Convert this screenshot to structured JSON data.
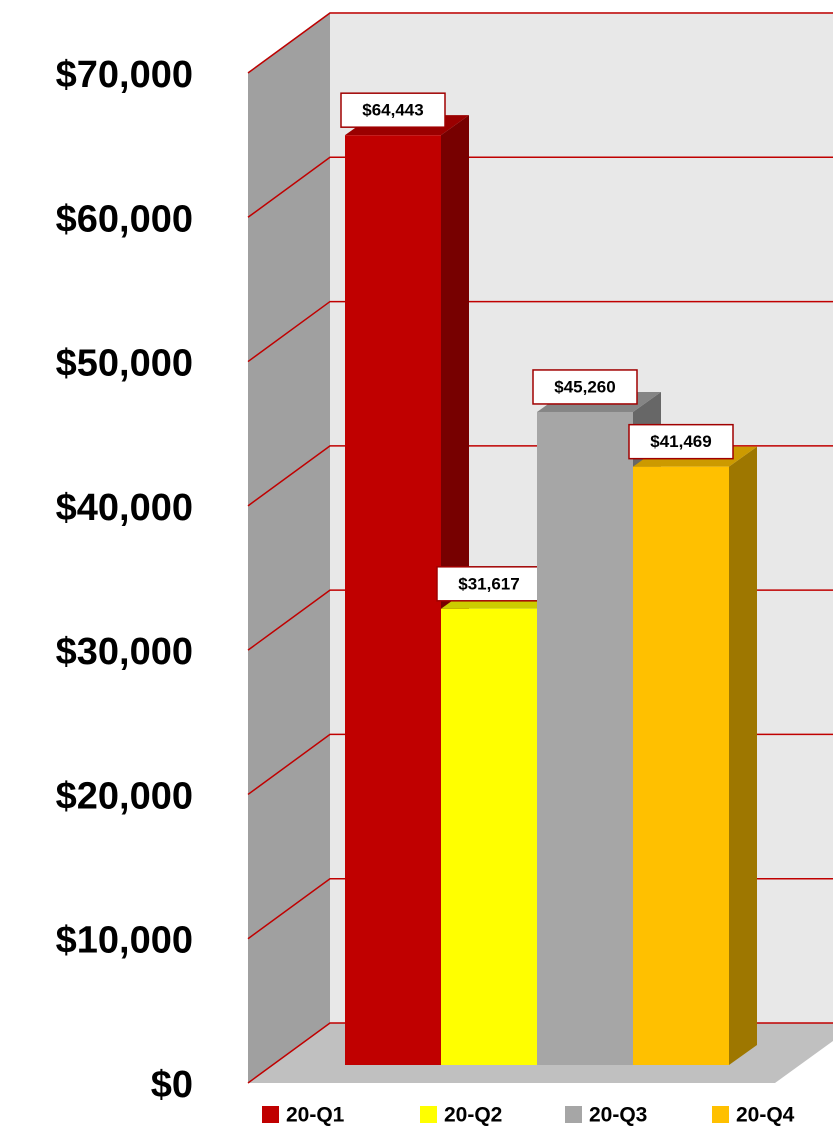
{
  "chart_data": {
    "type": "bar3d",
    "categories": [
      "20-Q1",
      "20-Q2",
      "20-Q3",
      "20-Q4"
    ],
    "values": [
      64443,
      31617,
      45260,
      41469
    ],
    "value_labels": [
      "$64,443",
      "$31,617",
      "$45,260",
      "$41,469"
    ],
    "colors": [
      "#c00000",
      "#ffff00",
      "#a6a6a6",
      "#ffc000"
    ],
    "ylim": [
      0,
      70000
    ],
    "yticks": [
      {
        "value": 0,
        "label": "$0"
      },
      {
        "value": 10000,
        "label": "$10,000"
      },
      {
        "value": 20000,
        "label": "$20,000"
      },
      {
        "value": 30000,
        "label": "$30,000"
      },
      {
        "value": 40000,
        "label": "$40,000"
      },
      {
        "value": 50000,
        "label": "$50,000"
      },
      {
        "value": 60000,
        "label": "$60,000"
      },
      {
        "value": 70000,
        "label": "$70,000"
      }
    ],
    "grid": true,
    "legend": "bottom"
  }
}
